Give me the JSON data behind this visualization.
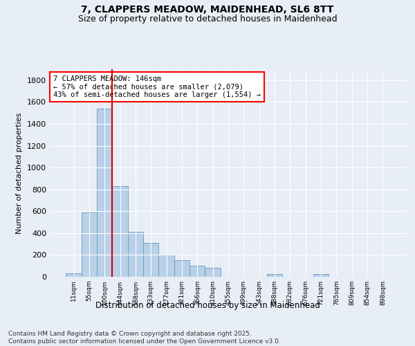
{
  "title_line1": "7, CLAPPERS MEADOW, MAIDENHEAD, SL6 8TT",
  "title_line2": "Size of property relative to detached houses in Maidenhead",
  "xlabel": "Distribution of detached houses by size in Maidenhead",
  "ylabel": "Number of detached properties",
  "footnote1": "Contains HM Land Registry data © Crown copyright and database right 2025.",
  "footnote2": "Contains public sector information licensed under the Open Government Licence v3.0.",
  "annotation_line1": "7 CLAPPERS MEADOW: 146sqm",
  "annotation_line2": "← 57% of detached houses are smaller (2,079)",
  "annotation_line3": "43% of semi-detached houses are larger (1,554) →",
  "bar_color": "#b8d0e8",
  "bar_edge_color": "#6699bb",
  "vline_color": "#cc0000",
  "vline_x": 2.5,
  "categories": [
    "11sqm",
    "55sqm",
    "100sqm",
    "144sqm",
    "188sqm",
    "233sqm",
    "277sqm",
    "321sqm",
    "366sqm",
    "410sqm",
    "455sqm",
    "499sqm",
    "543sqm",
    "588sqm",
    "632sqm",
    "676sqm",
    "721sqm",
    "765sqm",
    "809sqm",
    "854sqm",
    "898sqm"
  ],
  "values": [
    30,
    590,
    1540,
    830,
    410,
    310,
    205,
    150,
    100,
    85,
    0,
    0,
    0,
    25,
    0,
    0,
    25,
    0,
    0,
    0,
    0
  ],
  "ylim": [
    0,
    1900
  ],
  "yticks": [
    0,
    200,
    400,
    600,
    800,
    1000,
    1200,
    1400,
    1600,
    1800
  ],
  "background_color": "#e8eef5",
  "plot_bg_color": "#e8eef5",
  "grid_color": "#ffffff",
  "title_fontsize": 10,
  "subtitle_fontsize": 9,
  "footnote_fontsize": 6.5,
  "bar_width": 1.0
}
